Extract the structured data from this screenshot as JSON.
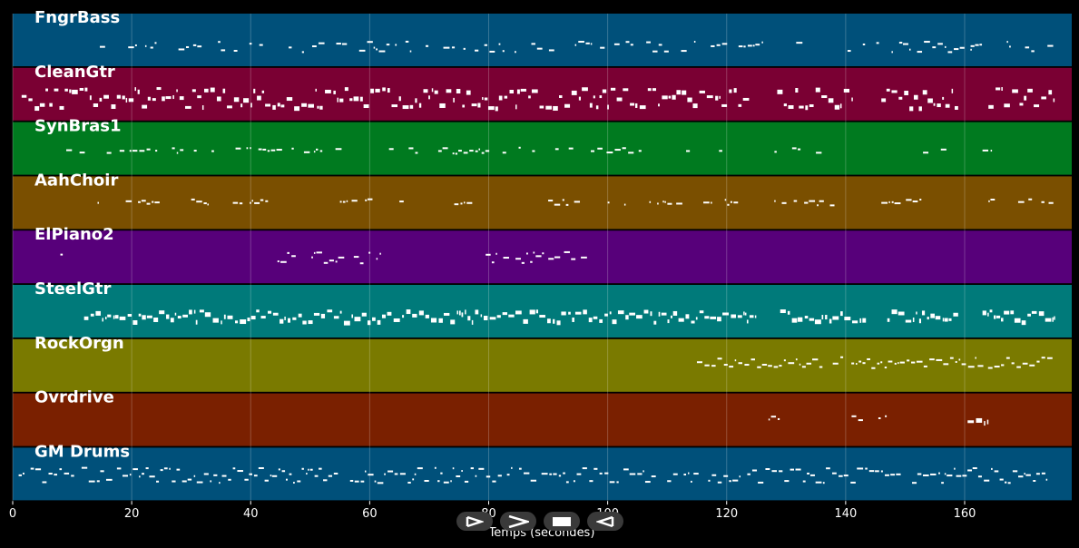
{
  "chart_data": {
    "type": "piano-roll",
    "xlabel": "Temps (secondes)",
    "xlim": [
      0,
      178
    ],
    "xticks": [
      0,
      20,
      40,
      60,
      80,
      100,
      120,
      140,
      160
    ],
    "grid": true,
    "tracks": [
      {
        "name": "FngrBass",
        "color": "#00507a",
        "dense": 0.55,
        "rows": [
          0.55,
          0.6,
          0.68
        ],
        "segments": [
          [
            12,
            121,
            0.5
          ],
          [
            122,
            126,
            0.9
          ],
          [
            127,
            148,
            0.5
          ],
          [
            149,
            151,
            0.9
          ],
          [
            152,
            161,
            0.5
          ],
          [
            161,
            163,
            0.9
          ],
          [
            164,
            175,
            0.5
          ]
        ]
      },
      {
        "name": "CleanGtr",
        "color": "#7a0033",
        "dense": 1,
        "rows": [
          0.4,
          0.55,
          0.7
        ],
        "segments": [
          [
            1.5,
            124,
            1
          ],
          [
            128.5,
            141,
            1
          ],
          [
            146,
            159,
            1
          ],
          [
            164,
            175,
            1
          ]
        ]
      },
      {
        "name": "SynBras1",
        "color": "#007a1f",
        "dense": 0.45,
        "rows": [
          0.5,
          0.55
        ],
        "segments": [
          [
            9,
            121,
            0.45
          ],
          [
            127,
            128.5,
            0.6
          ],
          [
            131,
            132.5,
            0.6
          ],
          [
            135,
            137,
            0.6
          ],
          [
            145,
            146.5,
            0.6
          ],
          [
            148,
            150,
            0.6
          ],
          [
            153,
            154,
            0.6
          ],
          [
            156,
            157.5,
            0.6
          ],
          [
            163,
            164.5,
            0.6
          ]
        ]
      },
      {
        "name": "AahChoir",
        "color": "#7a4f00",
        "dense": 0.5,
        "rows": [
          0.45,
          0.5
        ],
        "segments": [
          [
            12,
            14.5,
            0.6
          ],
          [
            19,
            25,
            0.6
          ],
          [
            30,
            33,
            0.6
          ],
          [
            37,
            43,
            0.6
          ],
          [
            55,
            61,
            0.6
          ],
          [
            65,
            68,
            0.6
          ],
          [
            72,
            78,
            0.6
          ],
          [
            90,
            96,
            0.6
          ],
          [
            100,
            103,
            0.6
          ],
          [
            107,
            113,
            0.6
          ],
          [
            115,
            122,
            0.6
          ],
          [
            128,
            139,
            0.6
          ],
          [
            146,
            156,
            0.6
          ],
          [
            164,
            175,
            0.6
          ]
        ]
      },
      {
        "name": "ElPiano2",
        "color": "#57007a",
        "dense": 0.7,
        "rows": [
          0.42,
          0.5,
          0.58
        ],
        "segments": [
          [
            5,
            8.5,
            0.7
          ],
          [
            44.5,
            62,
            0.7
          ],
          [
            79.5,
            97,
            0.7
          ]
        ]
      },
      {
        "name": "SteelGtr",
        "color": "#007a7a",
        "dense": 1,
        "rows": [
          0.5,
          0.58,
          0.65
        ],
        "segments": [
          [
            12,
            125,
            1
          ],
          [
            129,
            143.5,
            1
          ],
          [
            147,
            159,
            1
          ],
          [
            163,
            175,
            1
          ]
        ]
      },
      {
        "name": "RockOrgn",
        "color": "#7a7a00",
        "dense": 0.9,
        "rows": [
          0.36,
          0.44,
          0.5
        ],
        "segments": [
          [
            115,
            175,
            0.9
          ]
        ]
      },
      {
        "name": "Ovrdrive",
        "color": "#7a2000",
        "dense": 0.8,
        "rows": [
          0.45,
          0.5
        ],
        "segments": [
          [
            125,
            129,
            0.7
          ],
          [
            141,
            143,
            0.7
          ],
          [
            145.5,
            147,
            0.7
          ],
          [
            160.5,
            164,
            1
          ]
        ]
      },
      {
        "name": "GM Drums",
        "color": "#00507a",
        "dense": 0.9,
        "rows": [
          0.4,
          0.5,
          0.62
        ],
        "segments": [
          [
            1,
            175,
            0.9
          ]
        ]
      }
    ]
  },
  "colors": {
    "background": "#000000",
    "grid": "#ffffff",
    "note": "#ffffff",
    "control_bg": "#3a3a3a"
  },
  "controls": {
    "items": [
      {
        "icon": "play-from-start-icon"
      },
      {
        "icon": "fast-forward-icon"
      },
      {
        "icon": "stop-icon"
      },
      {
        "icon": "rewind-icon"
      }
    ]
  }
}
